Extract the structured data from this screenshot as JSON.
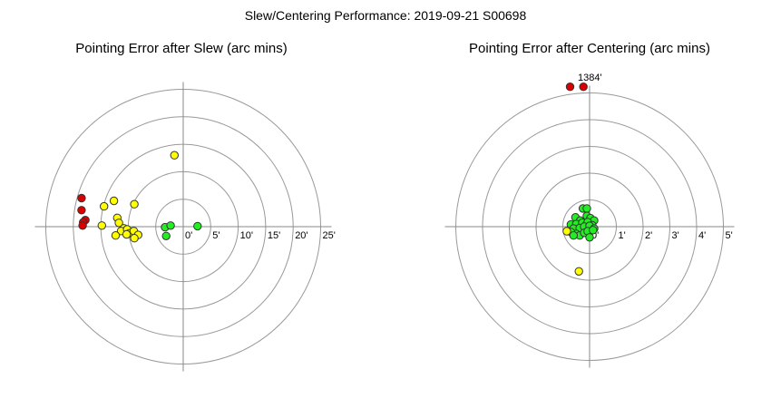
{
  "title": "Slew/Centering Performance: 2019-09-21 S00698",
  "chart_data": [
    {
      "type": "scatter",
      "title": "Pointing Error after Slew (arc mins)",
      "unit": "arcmin",
      "ring_step": 5,
      "rings": 5,
      "tick_labels": [
        "0'",
        "5'",
        "10'",
        "15'",
        "20'",
        "25'"
      ],
      "grid": true,
      "colors": {
        "green": "#22ee22",
        "yellow": "#ffff00",
        "red": "#dd0000"
      },
      "series": [
        {
          "color": "red",
          "points": [
            [
              -18.5,
              5.2
            ],
            [
              -18.5,
              3.0
            ],
            [
              -17.8,
              1.2
            ],
            [
              -18.2,
              0.8
            ],
            [
              -18.3,
              0.2
            ]
          ]
        },
        {
          "color": "yellow",
          "points": [
            [
              -1.6,
              13.0
            ],
            [
              -12.6,
              4.7
            ],
            [
              -8.9,
              4.1
            ],
            [
              -14.4,
              3.7
            ],
            [
              -12.0,
              1.6
            ],
            [
              -14.8,
              0.2
            ],
            [
              -11.7,
              0.7
            ],
            [
              -10.8,
              -0.3
            ],
            [
              -11.3,
              -0.8
            ],
            [
              -10.2,
              -0.5
            ],
            [
              -9.8,
              -1.2
            ],
            [
              -9.0,
              -0.8
            ],
            [
              -8.2,
              -1.5
            ],
            [
              -8.9,
              -2.1
            ],
            [
              -12.3,
              -1.6
            ],
            [
              -10.3,
              -1.4
            ]
          ]
        },
        {
          "color": "green",
          "points": [
            [
              -3.3,
              -0.1
            ],
            [
              -2.3,
              0.2
            ],
            [
              -3.1,
              -1.7
            ],
            [
              2.6,
              0.1
            ]
          ]
        }
      ]
    },
    {
      "type": "scatter",
      "title": "Pointing Error after Centering (arc mins)",
      "unit": "arcmin",
      "ring_step": 1,
      "rings": 5,
      "tick_labels": [
        "0'",
        "1'",
        "2'",
        "3'",
        "4'",
        "5'"
      ],
      "grid": true,
      "colors": {
        "green": "#22ee22",
        "yellow": "#ffff00",
        "red": "#dd0000"
      },
      "series": [
        {
          "color": "green",
          "points": [
            [
              -0.25,
              0.68
            ],
            [
              -0.1,
              0.68
            ],
            [
              -0.53,
              0.35
            ],
            [
              -0.35,
              0.23
            ],
            [
              -0.1,
              0.4
            ],
            [
              0.03,
              0.32
            ],
            [
              0.17,
              0.23
            ],
            [
              -0.7,
              0.08
            ],
            [
              -0.5,
              0.1
            ],
            [
              -0.27,
              0.15
            ],
            [
              -0.13,
              0.07
            ],
            [
              -0.07,
              0.17
            ],
            [
              0.1,
              0.05
            ],
            [
              -0.6,
              -0.07
            ],
            [
              -0.37,
              -0.05
            ],
            [
              -0.2,
              0.0
            ],
            [
              0.0,
              0.03
            ],
            [
              0.17,
              -0.07
            ],
            [
              -0.5,
              -0.27
            ],
            [
              -0.7,
              -0.2
            ],
            [
              -0.37,
              -0.33
            ],
            [
              -0.2,
              -0.23
            ],
            [
              -0.07,
              -0.17
            ],
            [
              0.0,
              -0.4
            ],
            [
              0.13,
              -0.13
            ],
            [
              -0.6,
              -0.33
            ]
          ]
        },
        {
          "color": "yellow",
          "points": [
            [
              -0.85,
              -0.17
            ],
            [
              -0.4,
              -1.67
            ]
          ]
        },
        {
          "color": "red",
          "points": [
            [
              -0.73,
              5.23
            ],
            [
              -0.23,
              5.23
            ]
          ]
        }
      ],
      "annotations": [
        {
          "text": "1384'"
        }
      ]
    }
  ]
}
